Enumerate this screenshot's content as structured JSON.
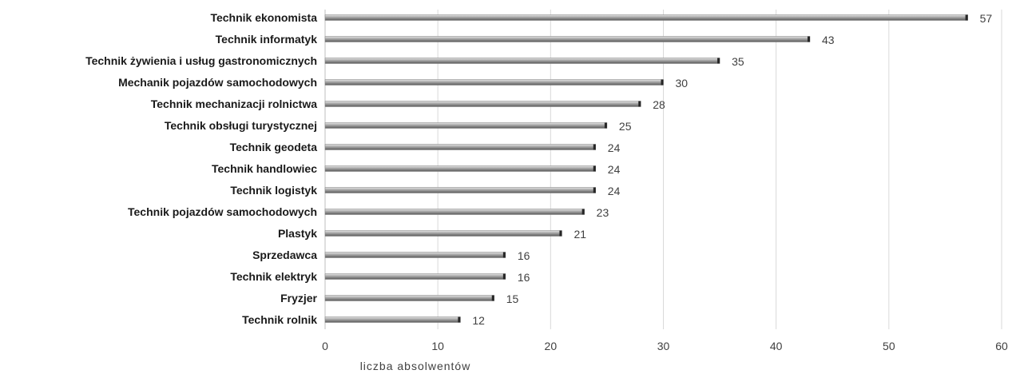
{
  "chart_data": {
    "type": "bar",
    "orientation": "horizontal",
    "categories": [
      "Technik ekonomista",
      "Technik informatyk",
      "Technik żywienia i usług gastronomicznych",
      "Mechanik pojazdów samochodowych",
      "Technik mechanizacji rolnictwa",
      "Technik obsługi turystycznej",
      "Technik geodeta",
      "Technik handlowiec",
      "Technik logistyk",
      "Technik pojazdów samochodowych",
      "Plastyk",
      "Sprzedawca",
      "Technik elektryk",
      "Fryzjer",
      "Technik rolnik"
    ],
    "values": [
      57,
      43,
      35,
      30,
      28,
      25,
      24,
      24,
      24,
      23,
      21,
      16,
      16,
      15,
      12
    ],
    "xlabel": "liczba absolwentów",
    "xlim": [
      0,
      60
    ],
    "xticks": [
      0,
      10,
      20,
      30,
      40,
      50,
      60
    ],
    "grid": "vertical",
    "data_labels": true,
    "colors": {
      "bar_light": "#d9d9d9",
      "bar_mid": "#a6a6a6",
      "bar_dark": "#595959",
      "bar_end": "#262626",
      "grid": "#d9d9d9"
    }
  }
}
